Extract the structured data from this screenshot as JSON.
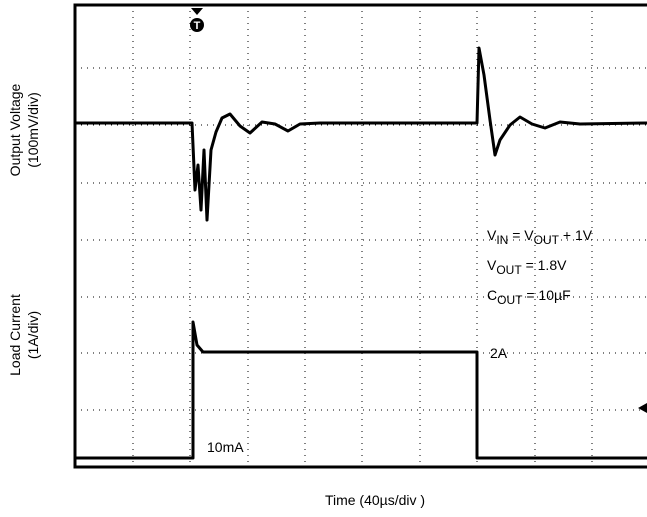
{
  "chart_data": {
    "type": "oscilloscope",
    "y_label_top": [
      "Output Voltage",
      "(100mV/div)"
    ],
    "y_label_bottom": [
      "Load Current",
      "(1A/div)"
    ],
    "x_label": "Time (40µs/div )",
    "trigger": "T",
    "annotations": {
      "vin": [
        "V",
        "IN",
        " = V",
        "OUT",
        " + 1V"
      ],
      "vout": [
        "V",
        "OUT",
        " = 1.8V"
      ],
      "cout": [
        "C",
        "OUT",
        " = 10µF"
      ],
      "high": "2A",
      "low": "10mA"
    }
  }
}
